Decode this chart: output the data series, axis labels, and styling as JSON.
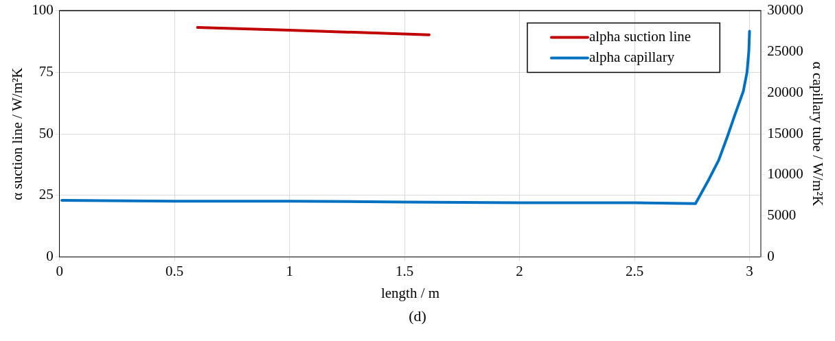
{
  "chart_data": {
    "type": "line",
    "xlabel": "length / m",
    "ylabel": "α suction line / W/m²K",
    "y2label": "α capillary tube / W/m²K",
    "series": [
      {
        "name": "alpha suction line",
        "color": "#c00000",
        "x": [
          0.6,
          1.0,
          1.607
        ],
        "values": [
          93.2,
          92.1,
          90.2
        ]
      },
      {
        "name": "alpha capillary",
        "color": "#0070c0",
        "axis": "y2",
        "x": [
          0.01,
          0.5,
          1.0,
          1.5,
          2.0,
          2.5,
          2.765,
          2.824,
          2.866,
          2.904,
          2.936,
          2.973,
          2.989,
          2.997,
          3.0
        ],
        "values": [
          6900,
          6800,
          6800,
          6700,
          6600,
          6600,
          6500,
          9500,
          11800,
          14700,
          17300,
          20200,
          22500,
          25100,
          27500
        ]
      }
    ],
    "xlim": [
      0,
      3.05
    ],
    "xticks": [
      0,
      0.5,
      1,
      1.5,
      2,
      2.5,
      3
    ],
    "ylim": [
      0,
      100
    ],
    "yticks": [
      0,
      25,
      50,
      75,
      100
    ],
    "y2lim": [
      0,
      30000
    ],
    "y2ticks": [
      0,
      5000,
      10000,
      15000,
      20000,
      25000,
      30000
    ],
    "grid": true,
    "legend": "top right",
    "marker": "none",
    "line_style": "solid",
    "annotations": [
      "(d)"
    ]
  }
}
